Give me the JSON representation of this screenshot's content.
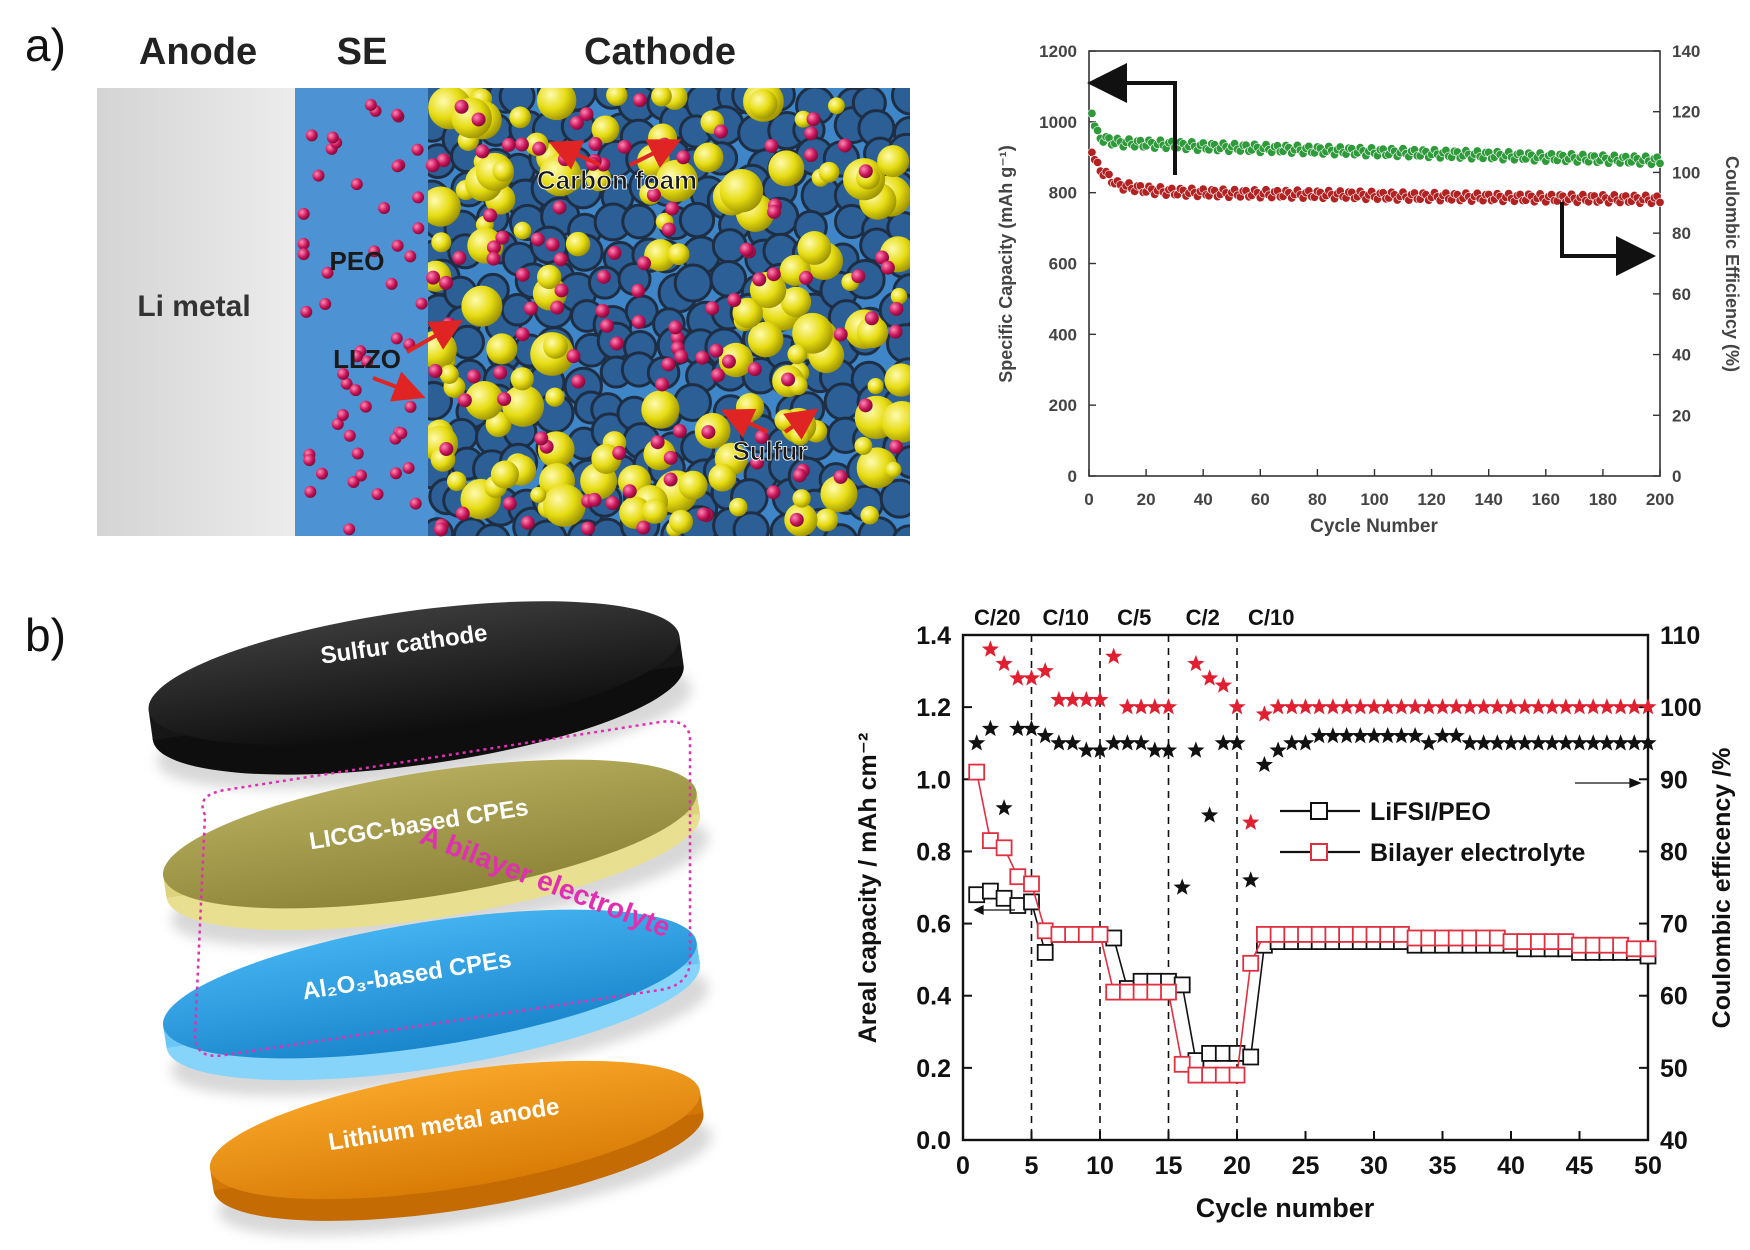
{
  "panel_a": {
    "label": "a)",
    "schematic": {
      "headers": [
        "Anode",
        "SE",
        "Cathode"
      ],
      "labels": {
        "li_metal": "Li metal",
        "peo": "PEO",
        "llzo": "LLZO",
        "carbon_foam": "Carbon foam",
        "sulfur": "Sulfur"
      },
      "colors": {
        "anode": "#dcdcdc",
        "electrolyte": "#3f86c8",
        "sulfur": "#e6dc12",
        "llzo": "#c8145a",
        "carbon": "#1e2e44",
        "arrow": "#e02424"
      }
    }
  },
  "panel_b": {
    "label": "b)",
    "stack": {
      "layers": [
        "Sulfur cathode",
        "LICGC-based CPEs",
        "Al₂O₃-based CPEs",
        "Lithium metal anode"
      ],
      "bracket_label": "A bilayer electrolyte",
      "colors": {
        "cathode": "#1d1d1d",
        "licgc": "#a59c4c",
        "al2o3": "#2a9be0",
        "anode": "#ef9212",
        "bracket": "#e030b0"
      }
    }
  },
  "chart_data": [
    {
      "type": "scatter",
      "panel": "a",
      "xlabel": "Cycle Number",
      "ylabel": "Specific Capacity (mAh g⁻¹)",
      "y2label": "Coulombic Efficiency (%)",
      "xlim": [
        0,
        200
      ],
      "ylim": [
        0,
        1200
      ],
      "y2lim": [
        0,
        140
      ],
      "xticks": [
        "0",
        "20",
        "40",
        "60",
        "80",
        "100",
        "120",
        "140",
        "160",
        "180",
        "200"
      ],
      "yticks": [
        "0",
        "200",
        "400",
        "600",
        "800",
        "1000",
        "1200"
      ],
      "y2ticks": [
        "0",
        "20",
        "40",
        "60",
        "80",
        "100",
        "120",
        "140"
      ],
      "grid": false,
      "series": [
        {
          "axis": "left",
          "color": "#b22222",
          "points": [
            [
              1,
              925
            ],
            [
              2,
              890
            ],
            [
              3,
              875
            ],
            [
              5,
              858
            ],
            [
              8,
              838
            ],
            [
              10,
              822
            ],
            [
              15,
              815
            ],
            [
              20,
              808
            ],
            [
              30,
              802
            ],
            [
              40,
              800
            ],
            [
              50,
              798
            ],
            [
              60,
              797
            ],
            [
              70,
              796
            ],
            [
              80,
              795
            ],
            [
              90,
              794
            ],
            [
              100,
              792
            ],
            [
              110,
              790
            ],
            [
              120,
              789
            ],
            [
              130,
              788
            ],
            [
              140,
              787
            ],
            [
              150,
              786
            ],
            [
              160,
              785
            ],
            [
              170,
              784
            ],
            [
              180,
              783
            ],
            [
              190,
              782
            ],
            [
              200,
              780
            ]
          ]
        },
        {
          "axis": "left",
          "color": "#2e9a3a",
          "points": [
            [
              1,
              1035
            ],
            [
              2,
              985
            ],
            [
              3,
              965
            ],
            [
              5,
              952
            ],
            [
              8,
              945
            ],
            [
              10,
              942
            ],
            [
              15,
              940
            ],
            [
              20,
              938
            ],
            [
              30,
              935
            ],
            [
              40,
              930
            ],
            [
              50,
              928
            ],
            [
              60,
              925
            ],
            [
              70,
              923
            ],
            [
              80,
              920
            ],
            [
              90,
              918
            ],
            [
              100,
              915
            ],
            [
              110,
              913
            ],
            [
              120,
              910
            ],
            [
              130,
              908
            ],
            [
              140,
              906
            ],
            [
              150,
              903
            ],
            [
              160,
              900
            ],
            [
              170,
              898
            ],
            [
              180,
              895
            ],
            [
              190,
              893
            ],
            [
              200,
              890
            ]
          ]
        }
      ]
    },
    {
      "type": "scatter",
      "panel": "b",
      "xlabel": "Cycle number",
      "ylabel": "Areal capacity / mAh cm⁻²",
      "y2label": "Coulombic efficency /%",
      "xlim": [
        0,
        50
      ],
      "ylim": [
        0,
        1.4
      ],
      "y2lim": [
        40,
        110
      ],
      "xticks": [
        "0",
        "5",
        "10",
        "15",
        "20",
        "25",
        "30",
        "35",
        "40",
        "45",
        "50"
      ],
      "yticks": [
        "0.0",
        "0.2",
        "0.4",
        "0.6",
        "0.8",
        "1.0",
        "1.2",
        "1.4"
      ],
      "y2ticks": [
        "40",
        "50",
        "60",
        "70",
        "80",
        "90",
        "100",
        "110"
      ],
      "rate_labels": [
        {
          "text": "C/20",
          "x": 2.5
        },
        {
          "text": "C/10",
          "x": 7.5
        },
        {
          "text": "C/5",
          "x": 12.5
        },
        {
          "text": "C/2",
          "x": 17.5
        },
        {
          "text": "C/10",
          "x": 22.5
        }
      ],
      "dividers": [
        5,
        10,
        15,
        20
      ],
      "legend": {
        "position": "center-right",
        "entries": [
          "LiFSI/PEO",
          "Bilayer electrolyte"
        ]
      },
      "series": [
        {
          "name": "LiFSI/PEO",
          "axis": "left",
          "marker": "square",
          "color": "#111111",
          "x": [
            1,
            2,
            3,
            4,
            5,
            6,
            7,
            8,
            9,
            10,
            11,
            12,
            13,
            14,
            15,
            16,
            17,
            18,
            19,
            20,
            21,
            22,
            23,
            24,
            25,
            26,
            27,
            28,
            29,
            30,
            31,
            32,
            33,
            34,
            35,
            36,
            37,
            38,
            39,
            40,
            41,
            42,
            43,
            44,
            45,
            46,
            47,
            48,
            49,
            50
          ],
          "y": [
            0.68,
            0.69,
            0.67,
            0.65,
            0.66,
            0.52,
            0.57,
            0.57,
            0.57,
            0.57,
            0.56,
            0.42,
            0.44,
            0.44,
            0.44,
            0.43,
            0.22,
            0.24,
            0.24,
            0.24,
            0.23,
            0.54,
            0.55,
            0.55,
            0.55,
            0.55,
            0.55,
            0.55,
            0.55,
            0.55,
            0.55,
            0.55,
            0.54,
            0.54,
            0.54,
            0.54,
            0.54,
            0.54,
            0.54,
            0.54,
            0.53,
            0.53,
            0.53,
            0.53,
            0.52,
            0.52,
            0.52,
            0.52,
            0.52,
            0.51
          ]
        },
        {
          "name": "Bilayer electrolyte",
          "axis": "left",
          "marker": "square",
          "color": "#e03040",
          "x": [
            1,
            2,
            3,
            4,
            5,
            6,
            7,
            8,
            9,
            10,
            11,
            12,
            13,
            14,
            15,
            16,
            17,
            18,
            19,
            20,
            21,
            22,
            23,
            24,
            25,
            26,
            27,
            28,
            29,
            30,
            31,
            32,
            33,
            34,
            35,
            36,
            37,
            38,
            39,
            40,
            41,
            42,
            43,
            44,
            45,
            46,
            47,
            48,
            49,
            50
          ],
          "y": [
            1.02,
            0.83,
            0.81,
            0.73,
            0.71,
            0.58,
            0.57,
            0.57,
            0.57,
            0.57,
            0.41,
            0.41,
            0.41,
            0.41,
            0.41,
            0.21,
            0.18,
            0.18,
            0.18,
            0.18,
            0.49,
            0.57,
            0.57,
            0.57,
            0.57,
            0.57,
            0.57,
            0.57,
            0.57,
            0.57,
            0.57,
            0.57,
            0.56,
            0.56,
            0.56,
            0.56,
            0.56,
            0.56,
            0.56,
            0.55,
            0.55,
            0.55,
            0.55,
            0.55,
            0.54,
            0.54,
            0.54,
            0.54,
            0.53,
            0.53
          ]
        },
        {
          "axis": "right",
          "marker": "star",
          "color": "#111111",
          "x": [
            1,
            2,
            3,
            4,
            5,
            6,
            7,
            8,
            9,
            10,
            11,
            12,
            13,
            14,
            15,
            16,
            17,
            18,
            19,
            20,
            21,
            22,
            23,
            24,
            25,
            26,
            27,
            28,
            29,
            30,
            31,
            32,
            33,
            34,
            35,
            36,
            37,
            38,
            39,
            40,
            41,
            42,
            43,
            44,
            45,
            46,
            47,
            48,
            49,
            50
          ],
          "y": [
            95,
            97,
            86,
            97,
            97,
            96,
            95,
            95,
            94,
            94,
            95,
            95,
            95,
            94,
            94,
            75,
            94,
            85,
            95,
            95,
            76,
            92,
            94,
            95,
            95,
            96,
            96,
            96,
            96,
            96,
            96,
            96,
            96,
            95,
            96,
            96,
            95,
            95,
            95,
            95,
            95,
            95,
            95,
            95,
            95,
            95,
            95,
            95,
            95,
            95
          ]
        },
        {
          "axis": "right",
          "marker": "star",
          "color": "#e02030",
          "x": [
            2,
            3,
            4,
            5,
            6,
            7,
            8,
            9,
            10,
            11,
            12,
            13,
            14,
            15,
            17,
            18,
            19,
            20,
            21,
            22,
            23,
            24,
            25,
            26,
            27,
            28,
            29,
            30,
            31,
            32,
            33,
            34,
            35,
            36,
            37,
            38,
            39,
            40,
            41,
            42,
            43,
            44,
            45,
            46,
            47,
            48,
            49,
            50
          ],
          "y": [
            108,
            106,
            104,
            104,
            105,
            101,
            101,
            101,
            101,
            107,
            100,
            100,
            100,
            100,
            106,
            104,
            103,
            100,
            84,
            99,
            100,
            100,
            100,
            100,
            100,
            100,
            100,
            100,
            100,
            100,
            100,
            100,
            100,
            100,
            100,
            100,
            100,
            100,
            100,
            100,
            100,
            100,
            100,
            100,
            100,
            100,
            100,
            100
          ]
        }
      ]
    }
  ]
}
